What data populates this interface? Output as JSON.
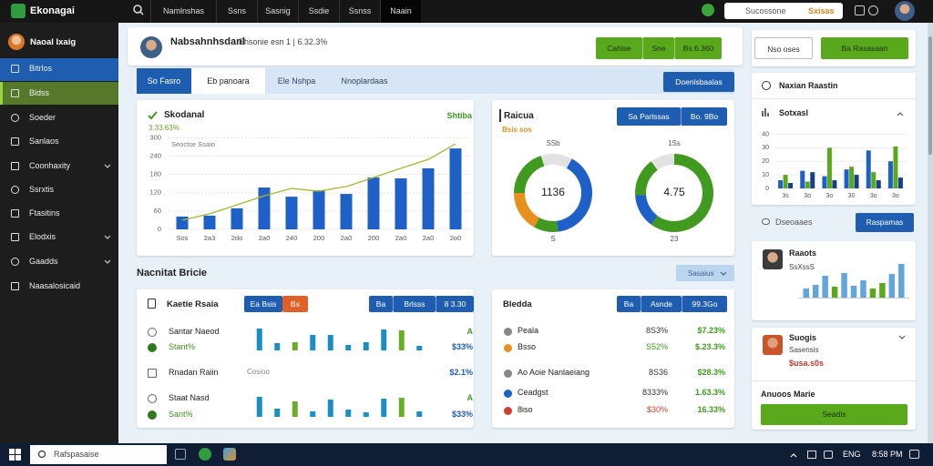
{
  "topbar": {
    "logo": "Ekonagai",
    "nav": [
      "Namlnshas",
      "Ssns",
      "Sasnig",
      "Ssdie",
      "Ssnss",
      "Naain"
    ],
    "search": "Sucossone",
    "search_tag": "Sxisas"
  },
  "sidebar": {
    "user": "Naoal Ixaig",
    "items": [
      {
        "label": "Bitrlos"
      },
      {
        "label": "Bldss"
      },
      {
        "label": "Soeder"
      },
      {
        "label": "Sanlaos"
      },
      {
        "label": "Coonhaxity",
        "expand": true
      },
      {
        "label": "Ssrxtis"
      },
      {
        "label": "Ftasitins"
      },
      {
        "label": "Elodxis",
        "expand": true
      },
      {
        "label": "Gaadds",
        "expand": true
      },
      {
        "label": "Naasalosicaid"
      }
    ]
  },
  "header": {
    "name": "Nabsahnhsdanl",
    "meta": "Ehsonie esn 1 | 6.32.3%",
    "buttons": [
      "Cahlse",
      "Sne",
      "Bs.6.360"
    ]
  },
  "tabs": {
    "items": [
      "So Fasro",
      "Eb panoara",
      "Ele Nshpa",
      "Nnoplardaas"
    ],
    "action": "Doenlsbaalas"
  },
  "trend_chart": {
    "type": "bar",
    "title": "Skodanal",
    "subtitle": "3.33.63%",
    "tag": "Shtiba",
    "legend": "Seoctse Ssaio",
    "categories": [
      "Sos",
      "2a3",
      "2do",
      "2a0",
      "240",
      "200",
      "2a0",
      "200",
      "2a0",
      "2a0",
      "2o0"
    ],
    "bars": {
      "color": "#1f5fc8",
      "values": [
        42,
        45,
        69,
        137,
        107,
        128,
        116,
        170,
        167,
        200,
        265
      ]
    },
    "line": {
      "color": "#a9b72c",
      "values": [
        30,
        51,
        80,
        110,
        134,
        125,
        140,
        170,
        200,
        229,
        280
      ]
    },
    "ylim": [
      0,
      310
    ],
    "yticks": [
      0,
      60,
      120,
      180,
      240,
      300
    ],
    "grid": true
  },
  "donut_card": {
    "title": "Raicua",
    "subtitle": "Bsis sos",
    "buttons": [
      "Sa Parlssas",
      "Bo. 9Bo"
    ],
    "donuts": [
      {
        "top": "SSb",
        "center": "1136",
        "bottom": "S",
        "values": [
          8,
          40,
          10,
          17,
          20,
          5
        ],
        "colors": [
          "#e2e2e2",
          "#1f5fc8",
          "#3f9a1f",
          "#e8901c",
          "#3f9a1f",
          "#e2e2e2"
        ]
      },
      {
        "top": "1Ss",
        "center": "4.75",
        "bottom": "23",
        "values": [
          60,
          14,
          16,
          10
        ],
        "colors": [
          "#3f9a1f",
          "#1f5fc8",
          "#3f9a1f",
          "#e2e2e2"
        ]
      }
    ]
  },
  "section": {
    "title": "Nacnitat Bricie",
    "dropdown": "Sasaius"
  },
  "status_card": {
    "title": "Kaetie Rsaia",
    "buttons": [
      "Ea Bsis",
      "Bs"
    ],
    "group": [
      "Ba",
      "Brlsss",
      "8 3.30"
    ],
    "rows": [
      {
        "label": "Santar Naeod",
        "end": "A",
        "bars": {
          "values": [
            24,
            8,
            9,
            17,
            17,
            6,
            9,
            23,
            22,
            5
          ],
          "colors": [
            "#1b8fc4",
            "#1b8fc4",
            "#6aab2b",
            "#1b8fc4",
            "#1b8fc4",
            "#1b8fc4",
            "#1b8fc4",
            "#1b8fc4",
            "#6aab2b",
            "#1b8fc4"
          ]
        }
      },
      {
        "label": "Stant%",
        "end": "$33%"
      },
      {
        "label": "Rnadan Raiin",
        "note": "Cosioo",
        "end": "$2.1%"
      },
      {
        "label": "Staat Nasd",
        "end": "A",
        "bars": {
          "values": [
            22,
            9,
            17,
            6,
            19,
            8,
            5,
            20,
            21,
            6
          ],
          "colors": [
            "#1b8fc4",
            "#1b8fc4",
            "#6aab2b",
            "#1b8fc4",
            "#1b8fc4",
            "#1b8fc4",
            "#1b8fc4",
            "#1b8fc4",
            "#6aab2b",
            "#1b8fc4"
          ]
        }
      },
      {
        "label": "Sant%",
        "end": "$33%"
      }
    ]
  },
  "ledger_card": {
    "title": "Bledda",
    "group": [
      "Ba",
      "Asnde",
      "99.3Go"
    ],
    "rows": [
      {
        "label": "Peala",
        "share": "8S3%",
        "value": "$7.23%",
        "icon_color": "#888888",
        "share_color": "#333333"
      },
      {
        "label": "Bsso",
        "share": "S52%",
        "value": "$.23.3%",
        "icon_color": "#e8901c",
        "share_color": "#3f9a1f"
      },
      {
        "label": "Ao Aoie Nanlaeiang",
        "share": "8S36",
        "value": "$28.3%",
        "icon_color": "#888888",
        "share_color": "#333333"
      },
      {
        "label": "Ceadgst",
        "share": "8333%",
        "value": "1.63.3%",
        "icon_color": "#1f5fc8",
        "share_color": "#333333"
      },
      {
        "label": "8iso",
        "share": "$30%",
        "value": "16.33%",
        "icon_color": "#d0402a",
        "share_color": "#d0402a"
      }
    ]
  },
  "actions": [
    "Nso oses",
    "Ba Rasasaan"
  ],
  "bar_panel": {
    "type": "bar",
    "heading": "Naxian Raastin",
    "title": "Sotxasl",
    "categories": [
      "3s",
      "3o",
      "3o",
      "30",
      "3o",
      "3o"
    ],
    "series": [
      {
        "color": "#1f5fc8",
        "values": [
          6,
          13,
          9,
          14,
          28,
          20
        ]
      },
      {
        "color": "#5aa91c",
        "values": [
          10,
          5,
          30,
          16,
          12,
          31
        ]
      },
      {
        "color": "#173f8a",
        "values": [
          4,
          12,
          6,
          10,
          6,
          8
        ]
      }
    ],
    "ylim": [
      0,
      45
    ],
    "yticks": [
      0,
      10,
      20,
      30,
      40
    ]
  },
  "filter": {
    "label": "Dseoaaes",
    "button": "Raspamas"
  },
  "profile_a": {
    "name": "Raaots",
    "sub": "SsXssS",
    "bars": {
      "values": [
        10,
        14,
        24,
        12,
        27,
        13,
        19,
        10,
        16,
        26,
        37
      ],
      "colors": [
        "#63a6dd",
        "#63a6dd",
        "#63a6dd",
        "#5aa91c",
        "#63a6dd",
        "#63a6dd",
        "#63a6dd",
        "#5aa91c",
        "#5aa91c",
        "#63a6dd",
        "#63a6dd"
      ]
    }
  },
  "profile_b": {
    "name": "Suogis",
    "sub": "Sasensis",
    "amount": "$usa.s0s",
    "heading": "Anuoos Marie",
    "button": "Seadis"
  },
  "taskbar": {
    "search": "Rafspasaise",
    "lang": "ENG",
    "time": "8:58 PM"
  }
}
